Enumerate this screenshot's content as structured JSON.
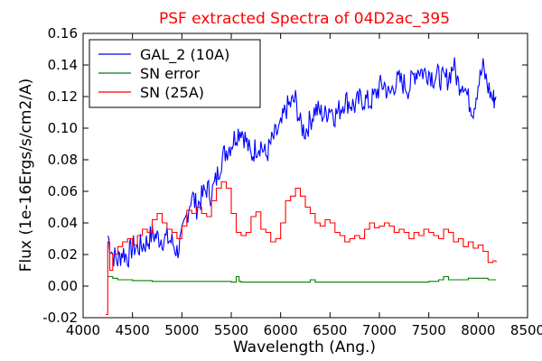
{
  "chart_data": {
    "type": "line",
    "title": "PSF extracted Spectra of 04D2ac_395",
    "title_color": "#ff0000",
    "xlabel": "Wavelength (Ang.)",
    "ylabel": "Flux (1e-16Ergs/s/cm2/A)",
    "xlim": [
      4000,
      8500
    ],
    "ylim": [
      -0.02,
      0.16
    ],
    "xticks": [
      4000,
      4500,
      5000,
      5500,
      6000,
      6500,
      7000,
      7500,
      8000,
      8500
    ],
    "xtick_labels": [
      "4000",
      "4500",
      "5000",
      "5500",
      "6000",
      "6500",
      "7000",
      "7500",
      "8000",
      "8500"
    ],
    "yticks": [
      -0.02,
      0.0,
      0.02,
      0.04,
      0.06,
      0.08,
      0.1,
      0.12,
      0.14,
      0.16
    ],
    "ytick_labels": [
      "-0.02",
      "0.00",
      "0.02",
      "0.04",
      "0.06",
      "0.08",
      "0.10",
      "0.12",
      "0.14",
      "0.16"
    ],
    "grid": false,
    "legend_position": "top-left",
    "series": [
      {
        "name": "GAL_2 (10A)",
        "color": "#0000ff",
        "style": "noisy",
        "x": [
          4250,
          4300,
          4350,
          4400,
          4450,
          4500,
          4550,
          4600,
          4650,
          4700,
          4750,
          4800,
          4850,
          4900,
          4950,
          5000,
          5050,
          5100,
          5150,
          5200,
          5250,
          5300,
          5350,
          5400,
          5450,
          5500,
          5550,
          5600,
          5650,
          5700,
          5750,
          5800,
          5850,
          5900,
          5950,
          6000,
          6050,
          6100,
          6150,
          6200,
          6250,
          6300,
          6350,
          6400,
          6450,
          6500,
          6550,
          6600,
          6650,
          6700,
          6750,
          6800,
          6850,
          6900,
          6950,
          7000,
          7050,
          7100,
          7150,
          7200,
          7250,
          7300,
          7350,
          7400,
          7450,
          7500,
          7550,
          7600,
          7650,
          7700,
          7750,
          7800,
          7850,
          7900,
          7950,
          8000,
          8050,
          8100,
          8150,
          8180
        ],
        "y": [
          0.032,
          0.02,
          0.016,
          0.022,
          0.018,
          0.025,
          0.024,
          0.026,
          0.028,
          0.033,
          0.031,
          0.03,
          0.03,
          0.028,
          0.022,
          0.03,
          0.045,
          0.058,
          0.05,
          0.056,
          0.062,
          0.058,
          0.068,
          0.08,
          0.086,
          0.09,
          0.096,
          0.1,
          0.092,
          0.082,
          0.088,
          0.09,
          0.082,
          0.09,
          0.096,
          0.1,
          0.112,
          0.115,
          0.118,
          0.102,
          0.098,
          0.105,
          0.112,
          0.11,
          0.108,
          0.114,
          0.108,
          0.112,
          0.118,
          0.116,
          0.114,
          0.118,
          0.118,
          0.116,
          0.12,
          0.126,
          0.128,
          0.12,
          0.128,
          0.13,
          0.128,
          0.125,
          0.134,
          0.138,
          0.135,
          0.136,
          0.132,
          0.133,
          0.13,
          0.132,
          0.14,
          0.128,
          0.13,
          0.118,
          0.112,
          0.128,
          0.138,
          0.126,
          0.118,
          0.12
        ]
      },
      {
        "name": "SN error",
        "color": "#008000",
        "style": "step",
        "x": [
          4250,
          4300,
          4350,
          4400,
          4500,
          4600,
          4700,
          4800,
          5000,
          5500,
          5550,
          5580,
          5600,
          6000,
          6300,
          6350,
          6500,
          7000,
          7300,
          7500,
          7600,
          7650,
          7700,
          7800,
          7900,
          8000,
          8100,
          8180
        ],
        "y": [
          0.006,
          0.005,
          0.004,
          0.004,
          0.0035,
          0.0035,
          0.003,
          0.003,
          0.003,
          0.0025,
          0.006,
          0.003,
          0.0025,
          0.0025,
          0.004,
          0.0025,
          0.0025,
          0.0025,
          0.0025,
          0.003,
          0.004,
          0.006,
          0.004,
          0.004,
          0.005,
          0.005,
          0.004,
          0.004
        ]
      },
      {
        "name": "SN (25A)",
        "color": "#ff0000",
        "style": "step",
        "x": [
          4230,
          4250,
          4270,
          4300,
          4350,
          4400,
          4450,
          4500,
          4550,
          4600,
          4650,
          4700,
          4750,
          4800,
          4850,
          4900,
          4950,
          5000,
          5050,
          5100,
          5150,
          5200,
          5250,
          5300,
          5350,
          5400,
          5450,
          5500,
          5550,
          5600,
          5650,
          5700,
          5750,
          5800,
          5850,
          5900,
          5950,
          6000,
          6050,
          6100,
          6150,
          6200,
          6250,
          6300,
          6350,
          6400,
          6450,
          6500,
          6550,
          6600,
          6650,
          6700,
          6750,
          6800,
          6850,
          6900,
          6950,
          7000,
          7050,
          7100,
          7150,
          7200,
          7250,
          7300,
          7350,
          7400,
          7450,
          7500,
          7550,
          7600,
          7650,
          7700,
          7750,
          7800,
          7850,
          7900,
          7950,
          8000,
          8050,
          8100,
          8150,
          8180
        ],
        "y": [
          -0.018,
          0.028,
          0.01,
          0.02,
          0.025,
          0.028,
          0.03,
          0.026,
          0.032,
          0.036,
          0.034,
          0.042,
          0.046,
          0.04,
          0.036,
          0.034,
          0.03,
          0.038,
          0.048,
          0.046,
          0.05,
          0.046,
          0.044,
          0.054,
          0.062,
          0.066,
          0.062,
          0.046,
          0.034,
          0.032,
          0.034,
          0.044,
          0.047,
          0.036,
          0.034,
          0.028,
          0.03,
          0.04,
          0.054,
          0.057,
          0.062,
          0.057,
          0.05,
          0.046,
          0.04,
          0.038,
          0.042,
          0.04,
          0.034,
          0.032,
          0.028,
          0.03,
          0.032,
          0.03,
          0.036,
          0.04,
          0.037,
          0.038,
          0.04,
          0.038,
          0.034,
          0.036,
          0.034,
          0.03,
          0.034,
          0.032,
          0.036,
          0.034,
          0.032,
          0.03,
          0.036,
          0.034,
          0.028,
          0.03,
          0.025,
          0.028,
          0.024,
          0.026,
          0.022,
          0.015,
          0.016,
          0.015
        ]
      }
    ]
  }
}
